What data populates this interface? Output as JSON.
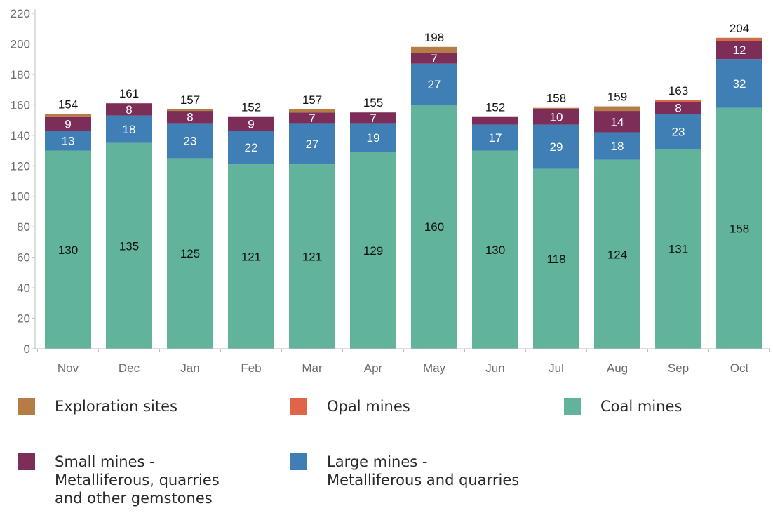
{
  "chart_data": {
    "type": "bar",
    "stacked": true,
    "categories": [
      "Nov",
      "Dec",
      "Jan",
      "Feb",
      "Mar",
      "Apr",
      "May",
      "Jun",
      "Jul",
      "Aug",
      "Sep",
      "Oct"
    ],
    "series": [
      {
        "name": "Coal mines",
        "color": "#62b39b",
        "values": [
          130,
          135,
          125,
          121,
          121,
          129,
          160,
          130,
          118,
          124,
          131,
          158
        ],
        "labels": [
          "130",
          "135",
          "125",
          "121",
          "121",
          "129",
          "160",
          "130",
          "118",
          "124",
          "131",
          "158"
        ],
        "label_color": "#111111"
      },
      {
        "name": "Large mines - Metalliferous and quarries",
        "color": "#3f7fb5",
        "values": [
          13,
          18,
          23,
          22,
          27,
          19,
          27,
          17,
          29,
          18,
          23,
          32
        ],
        "labels": [
          "13",
          "18",
          "23",
          "22",
          "27",
          "19",
          "27",
          "17",
          "29",
          "18",
          "23",
          "32"
        ],
        "label_color": "#ffffff"
      },
      {
        "name": "Small mines - Metalliferous, quarries and other gemstones",
        "color": "#7d2e58",
        "values": [
          9,
          8,
          8,
          9,
          7,
          7,
          7,
          5,
          10,
          14,
          8,
          12
        ],
        "labels": [
          "9",
          "8",
          "8",
          "9",
          "7",
          "7",
          "7",
          "",
          "10",
          "14",
          "8",
          "12"
        ],
        "label_color": "#ffffff"
      },
      {
        "name": "Opal mines",
        "color": "#df6548",
        "values": [
          0,
          0,
          0,
          0,
          0,
          0,
          0,
          0,
          0,
          0,
          1,
          1
        ],
        "labels": [
          "",
          "",
          "",
          "",
          "",
          "",
          "",
          "",
          "",
          "",
          "",
          ""
        ],
        "label_color": "#ffffff"
      },
      {
        "name": "Exploration sites",
        "color": "#b57d45",
        "values": [
          2,
          0,
          1,
          0,
          2,
          0,
          4,
          0,
          1,
          3,
          0,
          1
        ],
        "labels": [
          "",
          "",
          "",
          "",
          "",
          "",
          "",
          "",
          "",
          "",
          "",
          ""
        ],
        "label_color": "#ffffff"
      }
    ],
    "totals": [
      "154",
      "161",
      "157",
      "152",
      "157",
      "155",
      "198",
      "152",
      "158",
      "159",
      "163",
      "204"
    ],
    "yticks": [
      "0",
      "20",
      "40",
      "60",
      "80",
      "100",
      "120",
      "140",
      "160",
      "180",
      "200",
      "220"
    ],
    "ylim": [
      0,
      220
    ],
    "grid": false,
    "legend_position": "bottom"
  },
  "legend": [
    {
      "label": "Exploration sites",
      "color": "#b57d45"
    },
    {
      "label": "Opal mines",
      "color": "#df6548"
    },
    {
      "label": "Coal mines",
      "color": "#62b39b"
    },
    {
      "label": "Small mines -\nMetalliferous, quarries\nand other gemstones",
      "color": "#7d2e58"
    },
    {
      "label": "Large mines -\nMetalliferous and quarries",
      "color": "#3f7fb5"
    }
  ]
}
